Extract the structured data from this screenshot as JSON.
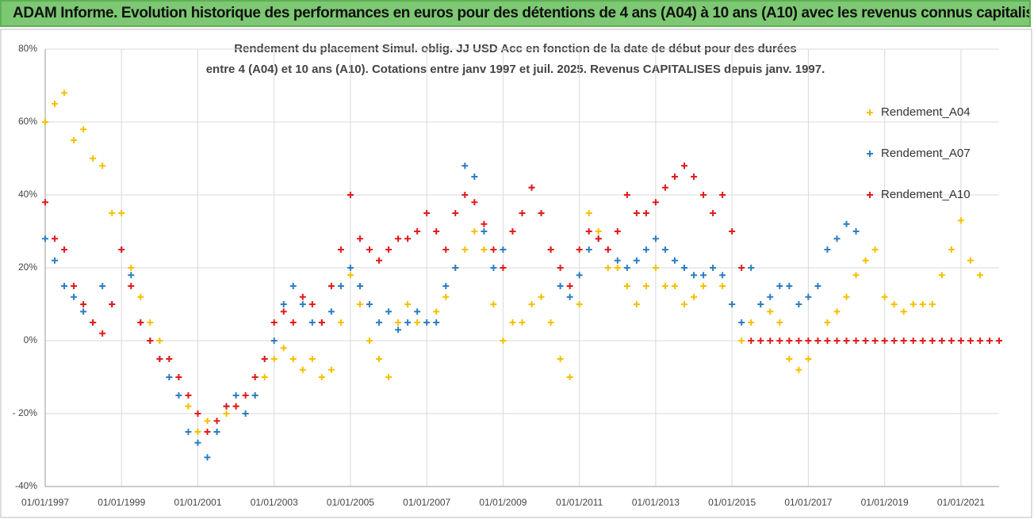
{
  "header": {
    "title": "ADAM Informe. Evolution historique des performances en euros pour des détentions de 4 ans (A04) à 10 ans (A10) avec les revenus connus capitalisés"
  },
  "chart_data": {
    "type": "scatter",
    "title": "Rendement du placement Simul. oblig. JJ USD Acc en fonction de la date de début pour des durées",
    "subtitle": "entre 4 (A04) et 10 ans (A10). Cotations entre janv 1997 et juil. 2025. Revenus CAPITALISES depuis janv. 1997.",
    "x": [
      "01/01/1997",
      "01/04/1997",
      "01/07/1997",
      "01/10/1997",
      "01/01/1998",
      "01/04/1998",
      "01/07/1998",
      "01/10/1998",
      "01/01/1999",
      "01/04/1999",
      "01/07/1999",
      "01/10/1999",
      "01/01/2000",
      "01/04/2000",
      "01/07/2000",
      "01/10/2000",
      "01/01/2001",
      "01/04/2001",
      "01/07/2001",
      "01/10/2001",
      "01/01/2002",
      "01/04/2002",
      "01/07/2002",
      "01/10/2002",
      "01/01/2003",
      "01/04/2003",
      "01/07/2003",
      "01/10/2003",
      "01/01/2004",
      "01/04/2004",
      "01/07/2004",
      "01/10/2004",
      "01/01/2005",
      "01/04/2005",
      "01/07/2005",
      "01/10/2005",
      "01/01/2006",
      "01/04/2006",
      "01/07/2006",
      "01/10/2006",
      "01/01/2007",
      "01/04/2007",
      "01/07/2007",
      "01/10/2007",
      "01/01/2008",
      "01/04/2008",
      "01/07/2008",
      "01/10/2008",
      "01/01/2009",
      "01/04/2009",
      "01/07/2009",
      "01/10/2009",
      "01/01/2010",
      "01/04/2010",
      "01/07/2010",
      "01/10/2010",
      "01/01/2011",
      "01/04/2011",
      "01/07/2011",
      "01/10/2011",
      "01/01/2012",
      "01/04/2012",
      "01/07/2012",
      "01/10/2012",
      "01/01/2013",
      "01/04/2013",
      "01/07/2013",
      "01/10/2013",
      "01/01/2014",
      "01/04/2014",
      "01/07/2014",
      "01/10/2014",
      "01/01/2015",
      "01/04/2015",
      "01/07/2015",
      "01/10/2015",
      "01/01/2016",
      "01/04/2016",
      "01/07/2016",
      "01/10/2016",
      "01/01/2017",
      "01/04/2017",
      "01/07/2017",
      "01/10/2017",
      "01/01/2018",
      "01/04/2018",
      "01/07/2018",
      "01/10/2018",
      "01/01/2019",
      "01/04/2019",
      "01/07/2019",
      "01/10/2019",
      "01/01/2020",
      "01/04/2020",
      "01/07/2020",
      "01/10/2020",
      "01/01/2021",
      "01/04/2021",
      "01/07/2021",
      "01/10/2021",
      "01/01/2022"
    ],
    "series": [
      {
        "name": "Rendement_A04",
        "color": "#f5c000",
        "values": [
          60,
          65,
          68,
          55,
          58,
          50,
          48,
          35,
          35,
          20,
          12,
          5,
          0,
          -5,
          -10,
          -18,
          -25,
          -22,
          -25,
          -20,
          -18,
          -20,
          -15,
          -10,
          -5,
          -2,
          -5,
          -8,
          -5,
          -10,
          -8,
          5,
          18,
          10,
          0,
          -5,
          -10,
          5,
          10,
          5,
          5,
          8,
          12,
          20,
          25,
          30,
          25,
          10,
          0,
          5,
          5,
          10,
          12,
          5,
          -5,
          -10,
          10,
          35,
          30,
          20,
          20,
          15,
          10,
          15,
          20,
          15,
          15,
          10,
          12,
          15,
          20,
          15,
          10,
          0,
          5,
          10,
          8,
          5,
          -5,
          -8,
          -5,
          0,
          5,
          8,
          12,
          18,
          22,
          25,
          12,
          10,
          8,
          10,
          10,
          10,
          18,
          25,
          33,
          22,
          18,
          null,
          null
        ]
      },
      {
        "name": "Rendement_A07",
        "color": "#2f7dc4",
        "values": [
          28,
          22,
          15,
          12,
          8,
          5,
          15,
          10,
          25,
          18,
          5,
          0,
          -5,
          -10,
          -15,
          -25,
          -28,
          -32,
          -25,
          -18,
          -15,
          -20,
          -15,
          -5,
          0,
          10,
          15,
          10,
          5,
          5,
          8,
          15,
          20,
          15,
          10,
          5,
          8,
          3,
          5,
          8,
          5,
          5,
          15,
          20,
          48,
          45,
          30,
          20,
          25,
          30,
          35,
          42,
          35,
          25,
          15,
          12,
          18,
          25,
          28,
          25,
          22,
          20,
          22,
          25,
          28,
          25,
          22,
          20,
          18,
          18,
          20,
          18,
          10,
          5,
          20,
          10,
          12,
          15,
          15,
          10,
          12,
          15,
          25,
          28,
          32,
          30,
          null,
          null,
          null,
          null,
          null,
          null,
          null,
          null,
          null,
          null,
          null,
          null,
          null,
          null,
          null
        ]
      },
      {
        "name": "Rendement_A10",
        "color": "#e31a1c",
        "values": [
          38,
          28,
          25,
          15,
          10,
          5,
          2,
          10,
          25,
          15,
          5,
          0,
          -5,
          -5,
          -10,
          -15,
          -20,
          -25,
          -22,
          -18,
          -18,
          -15,
          -10,
          -5,
          5,
          8,
          5,
          12,
          10,
          5,
          15,
          25,
          40,
          28,
          25,
          22,
          25,
          28,
          28,
          30,
          35,
          30,
          25,
          35,
          40,
          38,
          32,
          25,
          20,
          30,
          35,
          42,
          35,
          25,
          20,
          15,
          25,
          30,
          28,
          25,
          30,
          40,
          35,
          35,
          38,
          42,
          45,
          48,
          45,
          40,
          35,
          40,
          30,
          20,
          0,
          0,
          0,
          0,
          0,
          0,
          0,
          0,
          0,
          0,
          0,
          0,
          0,
          0,
          0,
          0,
          0,
          0,
          0,
          0,
          0,
          0,
          0,
          0,
          0,
          0,
          0
        ]
      }
    ],
    "xlim": [
      "01/01/1997",
      "01/01/2022"
    ],
    "xticks": [
      "01/01/1997",
      "01/01/1999",
      "01/01/2001",
      "01/01/2003",
      "01/01/2005",
      "01/01/2007",
      "01/01/2009",
      "01/01/2011",
      "01/01/2013",
      "01/01/2015",
      "01/01/2017",
      "01/01/2019",
      "01/01/2021"
    ],
    "ylim": [
      -40,
      80
    ],
    "yticks": [
      {
        "value": -40,
        "label": "-40%"
      },
      {
        "value": -20,
        "label": "- 20%"
      },
      {
        "value": 0,
        "label": "0%"
      },
      {
        "value": 20,
        "label": "20%"
      },
      {
        "value": 40,
        "label": "40%"
      },
      {
        "value": 60,
        "label": "60%"
      },
      {
        "value": 80,
        "label": "80%"
      }
    ],
    "grid": true,
    "legend": "right"
  }
}
